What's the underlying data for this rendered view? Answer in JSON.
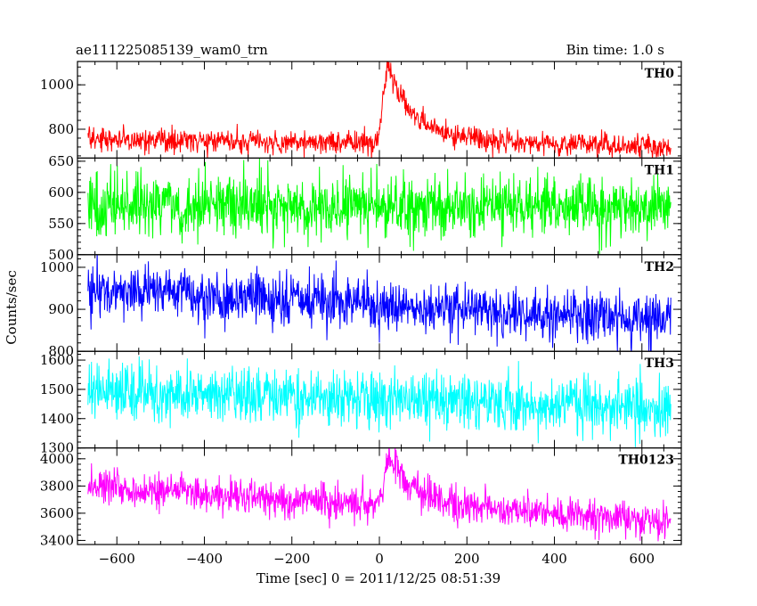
{
  "chart_data": {
    "type": "line",
    "title": "ae111225085139_wam0_trn",
    "bin_time_label": "Bin time: 1.0 s",
    "xlabel": "Time [sec] 0 = 2011/12/25 08:51:39",
    "ylabel": "Counts/sec",
    "xlim": [
      -690,
      690
    ],
    "x_range": [
      -666,
      666
    ],
    "x_step": 1,
    "x_ticks": [
      -600,
      -400,
      -200,
      0,
      200,
      400,
      600
    ],
    "x_tick_labels": [
      "−600",
      "−400",
      "−200",
      "0",
      "200",
      "400",
      "600"
    ],
    "panels": [
      {
        "name": "TH0",
        "color": "#ff0000",
        "ylim": [
          670,
          1105
        ],
        "y_ticks": [
          800,
          1000
        ],
        "y_minor_step": 40,
        "baseline_start": 755,
        "baseline_end": 720,
        "noise": 26,
        "peak": {
          "time": 18,
          "height": 330,
          "rise": 14,
          "decay": 55
        },
        "post_burst_level": 30
      },
      {
        "name": "TH1",
        "color": "#00ff00",
        "ylim": [
          500,
          655
        ],
        "y_ticks": [
          500,
          550,
          600,
          650
        ],
        "y_minor_step": 10,
        "baseline_start": 580,
        "baseline_end": 576,
        "noise": 25,
        "peak": null,
        "post_burst_level": 0
      },
      {
        "name": "TH2",
        "color": "#0000ff",
        "ylim": [
          800,
          1030
        ],
        "y_ticks": [
          800,
          900,
          1000
        ],
        "y_minor_step": 20,
        "baseline_start": 950,
        "baseline_end": 872,
        "noise": 30,
        "peak": null,
        "post_burst_level": 0
      },
      {
        "name": "TH3",
        "color": "#00ffff",
        "ylim": [
          1300,
          1630
        ],
        "y_ticks": [
          1300,
          1400,
          1500,
          1600
        ],
        "y_minor_step": 20,
        "baseline_start": 1500,
        "baseline_end": 1430,
        "noise": 50,
        "peak": null,
        "post_burst_level": 0
      },
      {
        "name": "TH0123",
        "color": "#ff00ff",
        "ylim": [
          3370,
          4080
        ],
        "y_ticks": [
          3400,
          3600,
          3800,
          4000
        ],
        "y_minor_step": 40,
        "baseline_start": 3790,
        "baseline_end": 3540,
        "noise": 65,
        "peak": {
          "time": 22,
          "height": 360,
          "rise": 14,
          "decay": 48
        },
        "post_burst_level": 40
      }
    ]
  }
}
